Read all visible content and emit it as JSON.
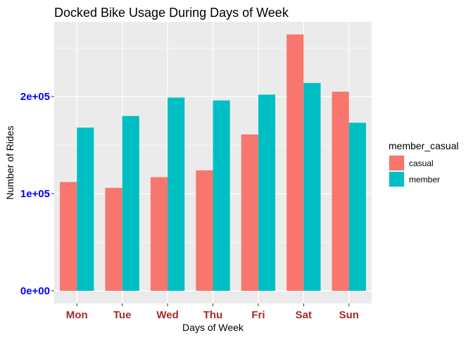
{
  "chart_data": {
    "type": "bar",
    "title": "Docked Bike Usage During Days of Week",
    "xlabel": "Days of Week",
    "ylabel": "Number of Rides",
    "categories": [
      "Mon",
      "Tue",
      "Wed",
      "Thu",
      "Fri",
      "Sat",
      "Sun"
    ],
    "series": [
      {
        "name": "casual",
        "color": "#F8766D",
        "values": [
          112000,
          106000,
          117000,
          124000,
          161000,
          264000,
          205000
        ]
      },
      {
        "name": "member",
        "color": "#00BFC4",
        "values": [
          168000,
          180000,
          199000,
          196000,
          202000,
          214000,
          173000
        ]
      }
    ],
    "ylim": [
      0,
      290000
    ],
    "yticks": [
      {
        "value": 0,
        "label": "0e+00"
      },
      {
        "value": 100000,
        "label": "1e+05"
      },
      {
        "value": 200000,
        "label": "2e+05"
      }
    ],
    "legend": {
      "title": "member_casual",
      "placement": "right"
    },
    "grid": true,
    "panel_background": "#EBEBEB",
    "ytick_color": "#0000FF",
    "xtick_color": "#A52A2A"
  }
}
